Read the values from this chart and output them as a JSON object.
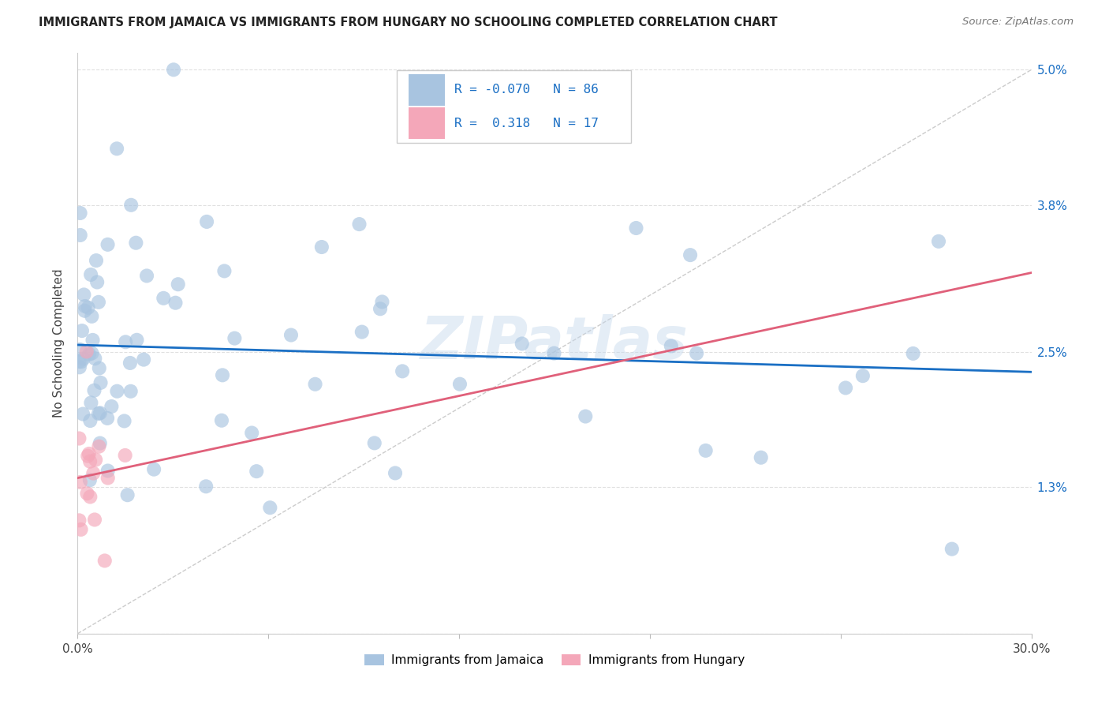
{
  "title": "IMMIGRANTS FROM JAMAICA VS IMMIGRANTS FROM HUNGARY NO SCHOOLING COMPLETED CORRELATION CHART",
  "source": "Source: ZipAtlas.com",
  "ylabel_label": "No Schooling Completed",
  "xlim": [
    0.0,
    30.0
  ],
  "ylim": [
    0.0,
    5.15
  ],
  "yticks": [
    0.0,
    1.3,
    2.5,
    3.8,
    5.0
  ],
  "ytick_labels": [
    "",
    "1.3%",
    "2.5%",
    "3.8%",
    "5.0%"
  ],
  "xticks": [
    0,
    6,
    12,
    18,
    24,
    30
  ],
  "xtick_labels": [
    "0.0%",
    "",
    "",
    "",
    "",
    "30.0%"
  ],
  "legend_jamaica": "Immigrants from Jamaica",
  "legend_hungary": "Immigrants from Hungary",
  "legend_r_jamaica": "-0.070",
  "legend_n_jamaica": "86",
  "legend_r_hungary": " 0.318",
  "legend_n_hungary": "17",
  "color_jamaica": "#a8c4e0",
  "color_hungary": "#f4a7b9",
  "trendline_jamaica_color": "#1a6fc4",
  "trendline_hungary_color": "#e0607a",
  "refline_color": "#cccccc",
  "background_color": "#ffffff",
  "watermark": "ZIPatlas",
  "grid_color": "#e0e0e0",
  "title_color": "#222222",
  "axis_label_color": "#1a6fc4",
  "source_color": "#777777",
  "jamaica_trendline_x0": 0,
  "jamaica_trendline_y0": 2.56,
  "jamaica_trendline_x1": 30,
  "jamaica_trendline_y1": 2.32,
  "hungary_trendline_x0": 0,
  "hungary_trendline_y0": 1.38,
  "hungary_trendline_x1": 30,
  "hungary_trendline_y1": 3.2
}
